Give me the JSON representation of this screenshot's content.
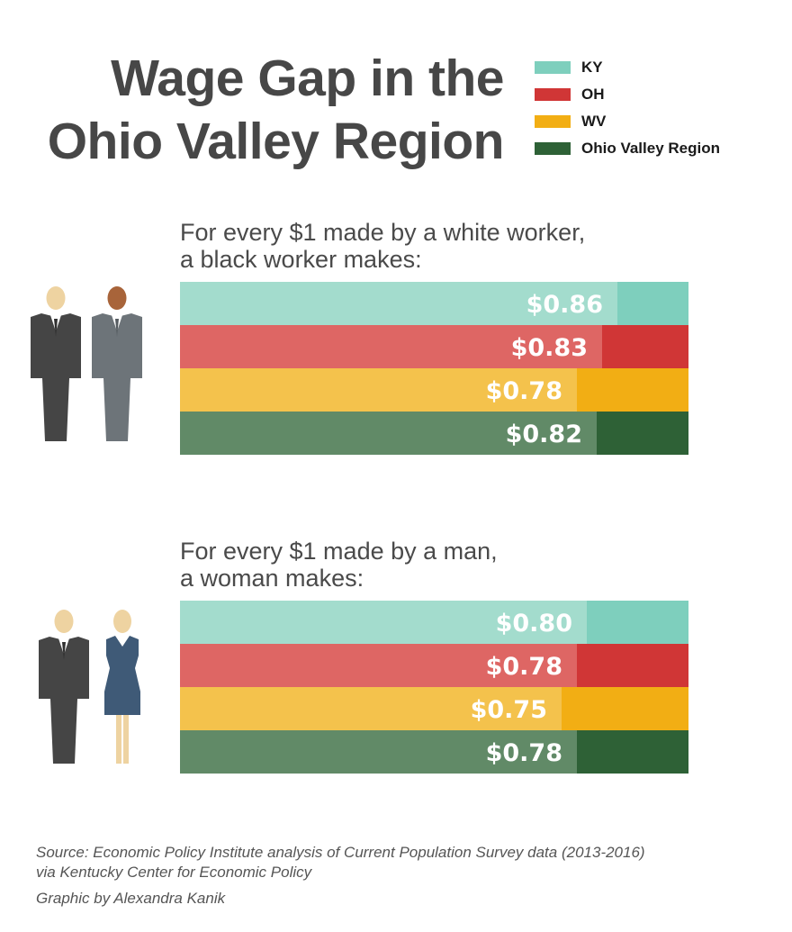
{
  "title_lines": [
    "Wage Gap in the",
    "Ohio Valley Region"
  ],
  "legend": [
    {
      "label": "KY",
      "color": "#7ecfbd"
    },
    {
      "label": "OH",
      "color": "#d03636"
    },
    {
      "label": "WV",
      "color": "#f2ae14"
    },
    {
      "label": "Ohio Valley Region",
      "color": "#2e6136"
    }
  ],
  "light_colors": [
    "#a3dccd",
    "#de6664",
    "#f4c24c",
    "#618a67"
  ],
  "icons": {
    "race": [
      "man-figure-light-skin-icon",
      "man-figure-dark-skin-icon"
    ],
    "gender": [
      "man-figure-icon",
      "woman-figure-icon"
    ]
  },
  "chart_data": [
    {
      "type": "bar",
      "orientation": "horizontal",
      "subtitle_lines": [
        "For every $1 made by a white worker,",
        "a black worker makes:"
      ],
      "categories": [
        "KY",
        "OH",
        "WV",
        "Ohio Valley Region"
      ],
      "values": [
        0.86,
        0.83,
        0.78,
        0.82
      ],
      "labels": [
        "$0.86",
        "$0.83",
        "$0.78",
        "$0.82"
      ],
      "xlim": [
        0,
        1
      ]
    },
    {
      "type": "bar",
      "orientation": "horizontal",
      "subtitle_lines": [
        "For every $1 made by a man,",
        "a woman makes:"
      ],
      "categories": [
        "KY",
        "OH",
        "WV",
        "Ohio Valley Region"
      ],
      "values": [
        0.8,
        0.78,
        0.75,
        0.78
      ],
      "labels": [
        "$0.80",
        "$0.78",
        "$0.75",
        "$0.78"
      ],
      "xlim": [
        0,
        1
      ]
    }
  ],
  "source_lines": [
    "Source: Economic Policy Institute analysis of Current Population Survey data (2013-2016)",
    "via Kentucky Center for Economic Policy"
  ],
  "credit": "Graphic by Alexandra Kanik"
}
